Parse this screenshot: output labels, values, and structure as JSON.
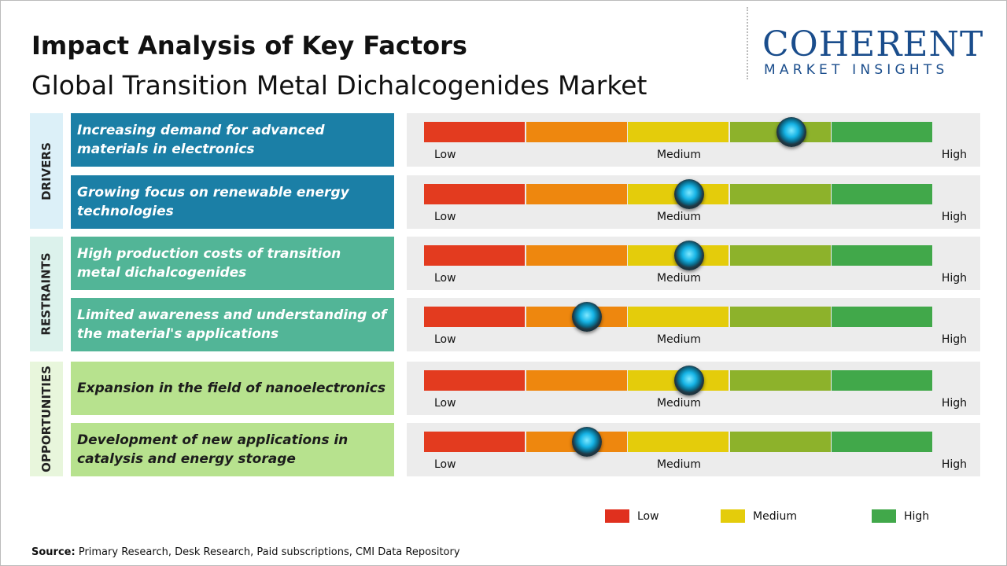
{
  "header": {
    "title": "Impact Analysis of Key Factors",
    "subtitle": "Global Transition Metal Dichalcogenides Market"
  },
  "logo": {
    "name": "COHERENT",
    "tagline": "MARKET INSIGHTS"
  },
  "gauge": {
    "segments": [
      "#e33b1f",
      "#ee870e",
      "#e4cc0b",
      "#8db22b",
      "#41a84a"
    ],
    "labels": [
      "Low",
      "Medium",
      "High"
    ]
  },
  "groups": [
    {
      "name": "DRIVERS",
      "side_color": "#dcf0f8",
      "box_color": "#1b7fa6",
      "text_color": "#ffffff",
      "factors": [
        {
          "text": "Increasing demand for advanced materials in electronics",
          "impact": 3.6
        },
        {
          "text": "Growing focus on renewable energy technologies",
          "impact": 2.6
        }
      ]
    },
    {
      "name": "RESTRAINTS",
      "side_color": "#dcf2ec",
      "box_color": "#52b597",
      "text_color": "#ffffff",
      "factors": [
        {
          "text": "High production costs of transition metal dichalcogenides",
          "impact": 2.6
        },
        {
          "text": "Limited awareness and understanding of the material's applications",
          "impact": 1.6
        }
      ]
    },
    {
      "name": "OPPORTUNITIES",
      "side_color": "#e8f6dc",
      "box_color": "#b7e28e",
      "text_color": "#1c1c1c",
      "factors": [
        {
          "text": "Expansion in the field of nanoelectronics",
          "impact": 2.6
        },
        {
          "text": "Development of new applications in catalysis and energy storage",
          "impact": 1.6
        }
      ]
    }
  ],
  "legend": [
    {
      "label": "Low",
      "color": "#e0301e"
    },
    {
      "label": "Medium",
      "color": "#e4cc0b"
    },
    {
      "label": "High",
      "color": "#41a84a"
    }
  ],
  "source": {
    "label": "Source:",
    "text": "Primary Research, Desk Research, Paid subscriptions, CMI Data Repository"
  }
}
